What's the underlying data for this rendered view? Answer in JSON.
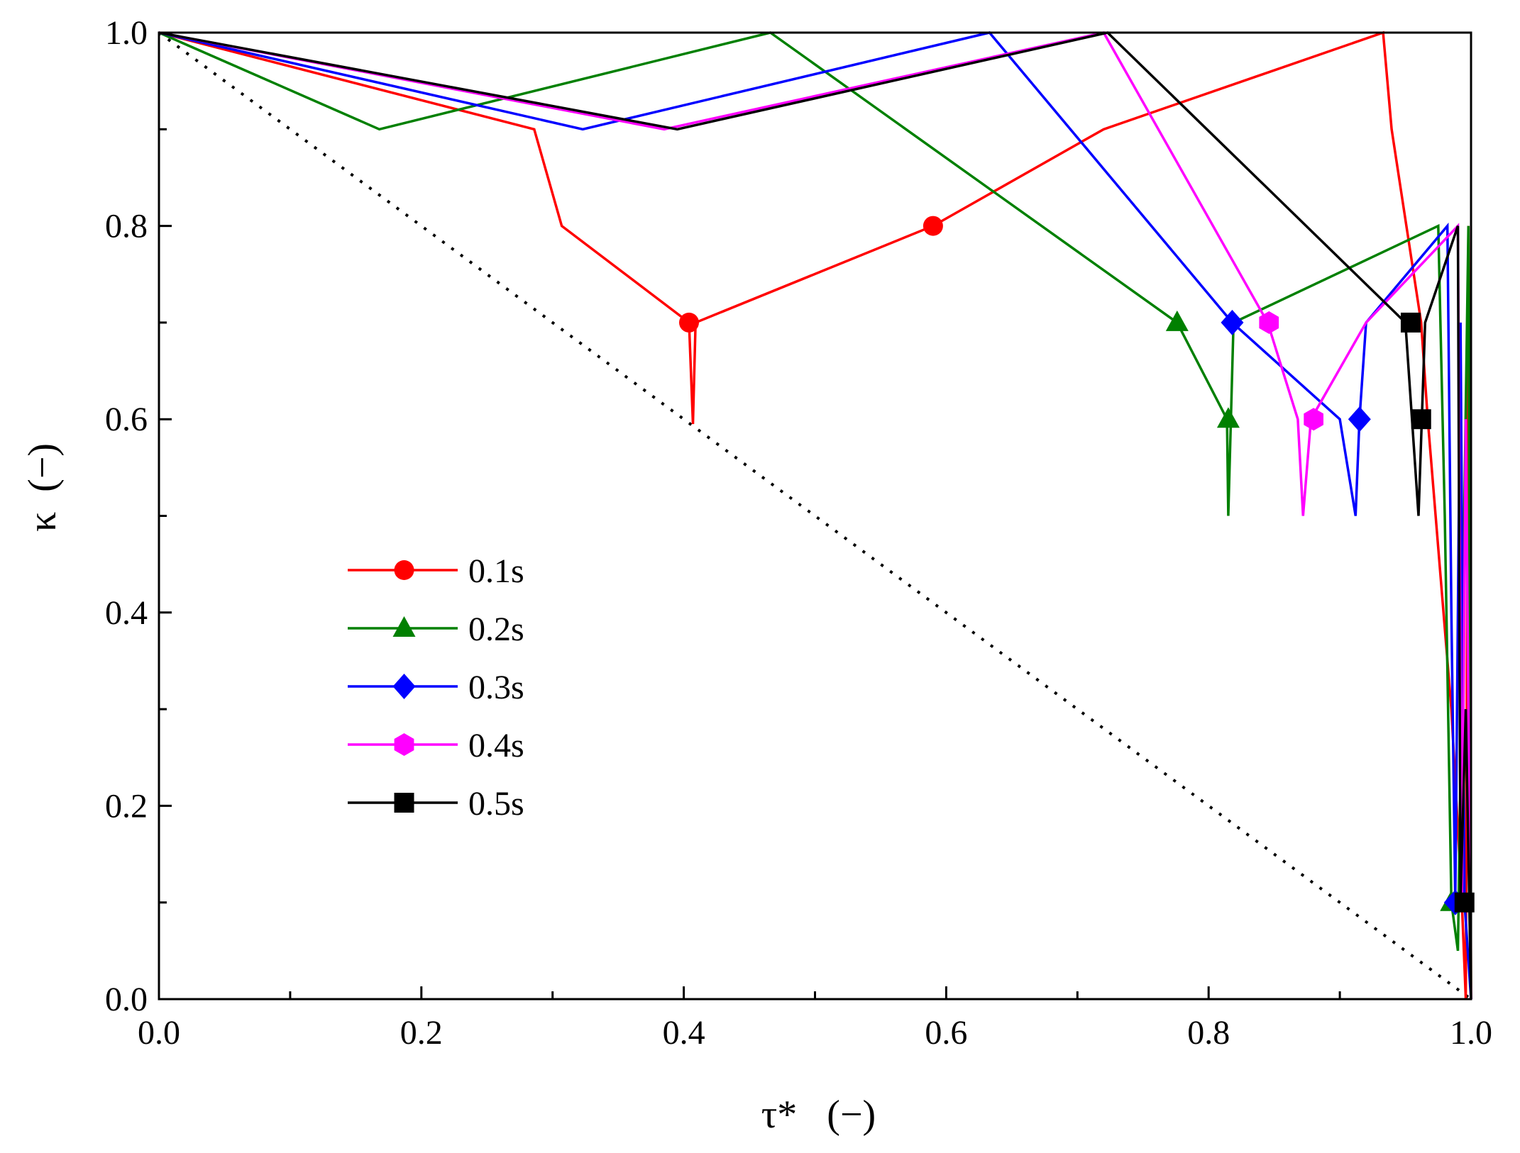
{
  "chart_data": {
    "type": "line",
    "title": "",
    "xlabel": "τ*   (−)",
    "ylabel": "κ  (−)",
    "xlim": [
      0.0,
      1.0
    ],
    "ylim": [
      0.0,
      1.0
    ],
    "xticks": [
      "0.0",
      "0.2",
      "0.4",
      "0.6",
      "0.8",
      "1.0"
    ],
    "yticks": [
      "0.0",
      "0.2",
      "0.4",
      "0.6",
      "0.8",
      "1.0"
    ],
    "xtick_values": [
      0.0,
      0.2,
      0.4,
      0.6,
      0.8,
      1.0
    ],
    "ytick_values": [
      0.0,
      0.2,
      0.4,
      0.6,
      0.8,
      1.0
    ],
    "minor_step": 0.1,
    "grid": false,
    "legend_position": "center-left",
    "reference_line": {
      "name": "diagonal",
      "style": "dotted",
      "color": "#000000",
      "points": [
        [
          0.0,
          1.0
        ],
        [
          1.0,
          0.0
        ]
      ]
    },
    "series": [
      {
        "name": "0.1s",
        "color": "#ff0000",
        "marker": "circle",
        "points": [
          [
            0.0,
            1.0
          ],
          [
            0.286,
            0.9
          ],
          [
            0.307,
            0.8
          ],
          [
            0.404,
            0.7
          ],
          [
            0.407,
            0.595
          ],
          [
            0.409,
            0.7
          ],
          [
            0.59,
            0.8
          ],
          [
            0.72,
            0.9
          ],
          [
            0.933,
            1.0
          ],
          [
            0.9395,
            0.9
          ],
          [
            0.962,
            0.7
          ],
          [
            0.967,
            0.6
          ],
          [
            0.985,
            0.3
          ],
          [
            0.993,
            0.1
          ],
          [
            0.996,
            0.0
          ],
          [
            0.998,
            0.8
          ],
          [
            0.999,
            0.45
          ],
          [
            1.0,
            0.0
          ]
        ],
        "marker_points": [
          [
            0.404,
            0.7
          ],
          [
            0.59,
            0.8
          ]
        ]
      },
      {
        "name": "0.2s",
        "color": "#008000",
        "marker": "triangle",
        "points": [
          [
            0.0,
            1.0
          ],
          [
            0.168,
            0.9
          ],
          [
            0.466,
            1.0
          ],
          [
            0.776,
            0.7
          ],
          [
            0.814,
            0.6
          ],
          [
            0.815,
            0.5
          ],
          [
            0.819,
            0.7
          ],
          [
            0.975,
            0.8
          ],
          [
            0.98,
            0.5
          ],
          [
            0.985,
            0.1
          ],
          [
            0.99,
            0.05
          ],
          [
            0.998,
            0.8
          ],
          [
            1.0,
            0.0
          ]
        ],
        "marker_points": [
          [
            0.776,
            0.7
          ],
          [
            0.815,
            0.6
          ],
          [
            0.985,
            0.1
          ]
        ]
      },
      {
        "name": "0.3s",
        "color": "#0000ff",
        "marker": "diamond",
        "points": [
          [
            0.0,
            1.0
          ],
          [
            0.323,
            0.9
          ],
          [
            0.633,
            1.0
          ],
          [
            0.818,
            0.7
          ],
          [
            0.9,
            0.6
          ],
          [
            0.912,
            0.5
          ],
          [
            0.915,
            0.6
          ],
          [
            0.92,
            0.7
          ],
          [
            0.982,
            0.8
          ],
          [
            0.985,
            0.4
          ],
          [
            0.988,
            0.1
          ],
          [
            0.992,
            0.7
          ],
          [
            0.995,
            0.1
          ],
          [
            1.0,
            0.0
          ]
        ],
        "marker_points": [
          [
            0.818,
            0.7
          ],
          [
            0.915,
            0.6
          ],
          [
            0.988,
            0.1
          ]
        ]
      },
      {
        "name": "0.4s",
        "color": "#ff00ff",
        "marker": "hexagon",
        "points": [
          [
            0.0,
            1.0
          ],
          [
            0.385,
            0.9
          ],
          [
            0.72,
            1.0
          ],
          [
            0.845,
            0.7
          ],
          [
            0.868,
            0.6
          ],
          [
            0.872,
            0.5
          ],
          [
            0.878,
            0.6
          ],
          [
            0.92,
            0.7
          ],
          [
            0.99,
            0.8
          ],
          [
            0.993,
            0.1
          ],
          [
            0.996,
            0.6
          ],
          [
            1.0,
            0.0
          ]
        ],
        "marker_points": [
          [
            0.846,
            0.7
          ],
          [
            0.88,
            0.6
          ]
        ]
      },
      {
        "name": "0.5s",
        "color": "#000000",
        "marker": "square",
        "points": [
          [
            0.0,
            1.0
          ],
          [
            0.395,
            0.9
          ],
          [
            0.723,
            1.0
          ],
          [
            0.95,
            0.7
          ],
          [
            0.955,
            0.6
          ],
          [
            0.96,
            0.5
          ],
          [
            0.965,
            0.7
          ],
          [
            0.99,
            0.8
          ],
          [
            0.992,
            0.1
          ],
          [
            0.996,
            0.3
          ],
          [
            1.0,
            0.0
          ]
        ],
        "marker_points": [
          [
            0.954,
            0.7
          ],
          [
            0.962,
            0.6
          ],
          [
            0.995,
            0.1
          ]
        ]
      }
    ]
  }
}
